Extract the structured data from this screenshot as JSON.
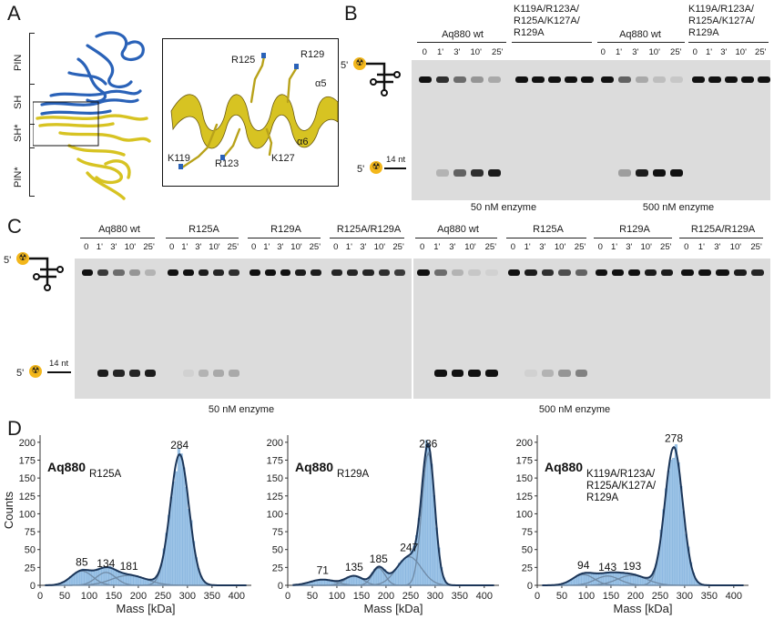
{
  "panels": {
    "A": {
      "letter": "A",
      "domain_labels": [
        "PIN",
        "SH",
        "SH*",
        "PIN*"
      ],
      "inset_labels": {
        "R125": "R125",
        "R129": "R129",
        "a5": "α5",
        "a6": "α6",
        "K119": "K119",
        "R123": "R123",
        "K127": "K127"
      },
      "colors": {
        "blue": "#2a62b8",
        "gold": "#d7c322"
      }
    },
    "B": {
      "letter": "B",
      "groups": [
        {
          "label": "Aq880 wt",
          "times": [
            "0",
            "1'",
            "3'",
            "10'",
            "25'"
          ]
        },
        {
          "label": "K119A/R123A/\nR125A/K127A/\nR129A"
        },
        {
          "label": "Aq880 wt",
          "times": [
            "0",
            "1'",
            "3'",
            "10'",
            "25'"
          ]
        },
        {
          "label": "K119A/R123A/\nR125A/K127A/\nR129A",
          "times": [
            "0",
            "1'",
            "3'",
            "10'",
            "25'"
          ]
        }
      ],
      "prime5": "5'",
      "nt_label": "14 nt",
      "enzyme_labels": [
        "50 nM enzyme",
        "500 nM enzyme"
      ]
    },
    "C": {
      "letter": "C",
      "groups": [
        {
          "label": "Aq880 wt",
          "times": [
            "0",
            "1'",
            "3'",
            "10'",
            "25'"
          ]
        },
        {
          "label": "R125A",
          "times": [
            "0",
            "1'",
            "3'",
            "10'",
            "25'"
          ]
        },
        {
          "label": "R129A",
          "times": [
            "0",
            "1'",
            "3'",
            "10'",
            "25'"
          ]
        },
        {
          "label": "R125A/R129A",
          "times": [
            "0",
            "1'",
            "3'",
            "10'",
            "25'"
          ]
        },
        {
          "label": "Aq880 wt",
          "times": [
            "0",
            "1'",
            "3'",
            "10'",
            "25'"
          ]
        },
        {
          "label": "R125A",
          "times": [
            "0",
            "1'",
            "3'",
            "10'",
            "25'"
          ]
        },
        {
          "label": "R129A",
          "times": [
            "0",
            "1'",
            "3'",
            "10'",
            "25'"
          ]
        },
        {
          "label": "R125A/R129A",
          "times": [
            "0",
            "1'",
            "3'",
            "10'",
            "25'"
          ]
        }
      ],
      "prime5": "5'",
      "nt_label": "14 nt",
      "enzyme_labels": [
        "50 nM enzyme",
        "500 nM enzyme"
      ]
    },
    "D": {
      "letter": "D"
    }
  },
  "chart_data": [
    {
      "type": "area",
      "title": "Aq880",
      "subtitle": "R125A",
      "xlabel": "Mass [kDa]",
      "ylabel": "Counts",
      "xlim": [
        0,
        430
      ],
      "ylim": [
        0,
        210
      ],
      "xticks": [
        0,
        50,
        100,
        150,
        200,
        250,
        300,
        350,
        400
      ],
      "yticks": [
        0,
        25,
        50,
        75,
        100,
        125,
        150,
        175,
        200
      ],
      "peaks": [
        {
          "mass": 85,
          "label": "85",
          "height": 20,
          "sigma": 22
        },
        {
          "mass": 134,
          "label": "134",
          "height": 18,
          "sigma": 20
        },
        {
          "mass": 181,
          "label": "181",
          "height": 14,
          "sigma": 35
        },
        {
          "mass": 284,
          "label": "284",
          "height": 183,
          "sigma": 19
        }
      ]
    },
    {
      "type": "area",
      "title": "Aq880",
      "subtitle": "R129A",
      "xlabel": "Mass [kDa]",
      "xlim": [
        0,
        430
      ],
      "ylim": [
        0,
        210
      ],
      "xticks": [
        0,
        50,
        100,
        150,
        200,
        250,
        300,
        350,
        400
      ],
      "yticks": [
        0,
        25,
        50,
        75,
        100,
        125,
        150,
        175,
        200
      ],
      "peaks": [
        {
          "mass": 71,
          "label": "71",
          "height": 8,
          "sigma": 25
        },
        {
          "mass": 135,
          "label": "135",
          "height": 13,
          "sigma": 18
        },
        {
          "mass": 185,
          "label": "185",
          "height": 24,
          "sigma": 13
        },
        {
          "mass": 247,
          "label": "247",
          "height": 40,
          "sigma": 25
        },
        {
          "mass": 286,
          "label": "286",
          "height": 185,
          "sigma": 13
        }
      ]
    },
    {
      "type": "area",
      "title": "Aq880",
      "subtitle": "K119A/R123A/\nR125A/K127A/\nR129A",
      "xlabel": "Mass [kDa]",
      "xlim": [
        0,
        430
      ],
      "ylim": [
        0,
        210
      ],
      "xticks": [
        0,
        50,
        100,
        150,
        200,
        250,
        300,
        350,
        400
      ],
      "yticks": [
        0,
        25,
        50,
        75,
        100,
        125,
        150,
        175,
        200
      ],
      "peaks": [
        {
          "mass": 94,
          "label": "94",
          "height": 15,
          "sigma": 22
        },
        {
          "mass": 143,
          "label": "143",
          "height": 13,
          "sigma": 25
        },
        {
          "mass": 193,
          "label": "193",
          "height": 14,
          "sigma": 30
        },
        {
          "mass": 278,
          "label": "278",
          "height": 193,
          "sigma": 18
        }
      ]
    }
  ]
}
